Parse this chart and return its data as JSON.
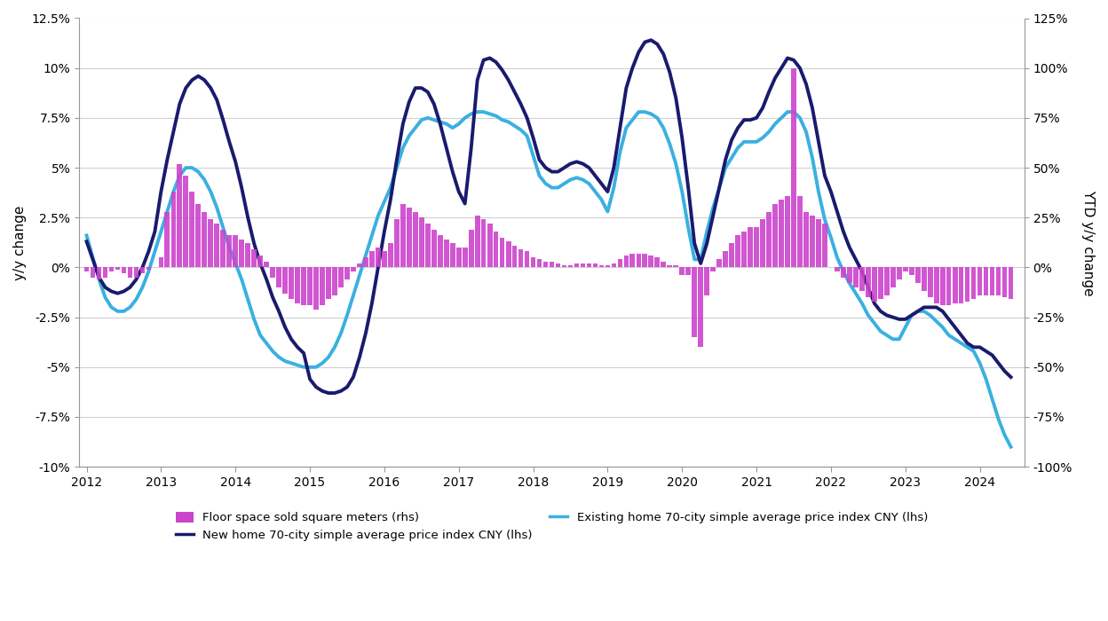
{
  "ylabel_left": "y/y change",
  "ylabel_right": "YTD y/y change",
  "new_home_color": "#1a1a6e",
  "existing_home_color": "#3ab0e0",
  "bar_color": "#cc44cc",
  "background_color": "#ffffff",
  "ylim_left": [
    -0.1,
    0.125
  ],
  "ylim_right": [
    -1.0,
    1.25
  ],
  "yticks_left": [
    -0.1,
    -0.075,
    -0.05,
    -0.025,
    0.0,
    0.025,
    0.05,
    0.075,
    0.1,
    0.125
  ],
  "yticks_right": [
    -1.0,
    -0.75,
    -0.5,
    -0.25,
    0.0,
    0.25,
    0.5,
    0.75,
    1.0,
    1.25
  ],
  "legend": [
    {
      "label": "Floor space sold square meters (rhs)",
      "color": "#cc44cc",
      "type": "bar"
    },
    {
      "label": "New home 70-city simple average price index CNY (lhs)",
      "color": "#1a1a6e",
      "type": "line"
    },
    {
      "label": "Existing home 70-city simple average price index CNY (lhs)",
      "color": "#3ab0e0",
      "type": "line"
    }
  ],
  "dates_new_home": [
    2012.0,
    2012.083,
    2012.167,
    2012.25,
    2012.333,
    2012.417,
    2012.5,
    2012.583,
    2012.667,
    2012.75,
    2012.833,
    2012.917,
    2013.0,
    2013.083,
    2013.167,
    2013.25,
    2013.333,
    2013.417,
    2013.5,
    2013.583,
    2013.667,
    2013.75,
    2013.833,
    2013.917,
    2014.0,
    2014.083,
    2014.167,
    2014.25,
    2014.333,
    2014.417,
    2014.5,
    2014.583,
    2014.667,
    2014.75,
    2014.833,
    2014.917,
    2015.0,
    2015.083,
    2015.167,
    2015.25,
    2015.333,
    2015.417,
    2015.5,
    2015.583,
    2015.667,
    2015.75,
    2015.833,
    2015.917,
    2016.0,
    2016.083,
    2016.167,
    2016.25,
    2016.333,
    2016.417,
    2016.5,
    2016.583,
    2016.667,
    2016.75,
    2016.833,
    2016.917,
    2017.0,
    2017.083,
    2017.167,
    2017.25,
    2017.333,
    2017.417,
    2017.5,
    2017.583,
    2017.667,
    2017.75,
    2017.833,
    2017.917,
    2018.0,
    2018.083,
    2018.167,
    2018.25,
    2018.333,
    2018.417,
    2018.5,
    2018.583,
    2018.667,
    2018.75,
    2018.833,
    2018.917,
    2019.0,
    2019.083,
    2019.167,
    2019.25,
    2019.333,
    2019.417,
    2019.5,
    2019.583,
    2019.667,
    2019.75,
    2019.833,
    2019.917,
    2020.0,
    2020.083,
    2020.167,
    2020.25,
    2020.333,
    2020.417,
    2020.5,
    2020.583,
    2020.667,
    2020.75,
    2020.833,
    2020.917,
    2021.0,
    2021.083,
    2021.167,
    2021.25,
    2021.333,
    2021.417,
    2021.5,
    2021.583,
    2021.667,
    2021.75,
    2021.833,
    2021.917,
    2022.0,
    2022.083,
    2022.167,
    2022.25,
    2022.333,
    2022.417,
    2022.5,
    2022.583,
    2022.667,
    2022.75,
    2022.833,
    2022.917,
    2023.0,
    2023.083,
    2023.167,
    2023.25,
    2023.333,
    2023.417,
    2023.5,
    2023.583,
    2023.667,
    2023.75,
    2023.833,
    2023.917,
    2024.0,
    2024.083,
    2024.167,
    2024.25,
    2024.333,
    2024.417
  ],
  "values_new_home": [
    0.013,
    0.004,
    -0.005,
    -0.01,
    -0.012,
    -0.013,
    -0.012,
    -0.01,
    -0.006,
    0.0,
    0.008,
    0.018,
    0.038,
    0.054,
    0.068,
    0.082,
    0.09,
    0.094,
    0.096,
    0.094,
    0.09,
    0.084,
    0.074,
    0.063,
    0.053,
    0.04,
    0.025,
    0.012,
    0.002,
    -0.006,
    -0.015,
    -0.022,
    -0.03,
    -0.036,
    -0.04,
    -0.043,
    -0.056,
    -0.06,
    -0.062,
    -0.063,
    -0.063,
    -0.062,
    -0.06,
    -0.055,
    -0.045,
    -0.033,
    -0.018,
    0.0,
    0.018,
    0.034,
    0.054,
    0.072,
    0.083,
    0.09,
    0.09,
    0.088,
    0.082,
    0.072,
    0.06,
    0.048,
    0.038,
    0.032,
    0.06,
    0.094,
    0.104,
    0.105,
    0.103,
    0.099,
    0.094,
    0.088,
    0.082,
    0.075,
    0.065,
    0.054,
    0.05,
    0.048,
    0.048,
    0.05,
    0.052,
    0.053,
    0.052,
    0.05,
    0.046,
    0.042,
    0.038,
    0.05,
    0.07,
    0.09,
    0.1,
    0.108,
    0.113,
    0.114,
    0.112,
    0.107,
    0.098,
    0.085,
    0.065,
    0.04,
    0.012,
    0.002,
    0.012,
    0.026,
    0.04,
    0.054,
    0.064,
    0.07,
    0.074,
    0.074,
    0.075,
    0.08,
    0.088,
    0.095,
    0.1,
    0.105,
    0.104,
    0.1,
    0.092,
    0.08,
    0.063,
    0.046,
    0.038,
    0.028,
    0.018,
    0.01,
    0.004,
    -0.002,
    -0.01,
    -0.018,
    -0.022,
    -0.024,
    -0.025,
    -0.026,
    -0.026,
    -0.024,
    -0.022,
    -0.02,
    -0.02,
    -0.02,
    -0.022,
    -0.026,
    -0.03,
    -0.034,
    -0.038,
    -0.04,
    -0.04,
    -0.042,
    -0.044,
    -0.048,
    -0.052,
    -0.055
  ],
  "dates_existing_home": [
    2012.0,
    2012.083,
    2012.167,
    2012.25,
    2012.333,
    2012.417,
    2012.5,
    2012.583,
    2012.667,
    2012.75,
    2012.833,
    2012.917,
    2013.0,
    2013.083,
    2013.167,
    2013.25,
    2013.333,
    2013.417,
    2013.5,
    2013.583,
    2013.667,
    2013.75,
    2013.833,
    2013.917,
    2014.0,
    2014.083,
    2014.167,
    2014.25,
    2014.333,
    2014.417,
    2014.5,
    2014.583,
    2014.667,
    2014.75,
    2014.833,
    2014.917,
    2015.0,
    2015.083,
    2015.167,
    2015.25,
    2015.333,
    2015.417,
    2015.5,
    2015.583,
    2015.667,
    2015.75,
    2015.833,
    2015.917,
    2016.0,
    2016.083,
    2016.167,
    2016.25,
    2016.333,
    2016.417,
    2016.5,
    2016.583,
    2016.667,
    2016.75,
    2016.833,
    2016.917,
    2017.0,
    2017.083,
    2017.167,
    2017.25,
    2017.333,
    2017.417,
    2017.5,
    2017.583,
    2017.667,
    2017.75,
    2017.833,
    2017.917,
    2018.0,
    2018.083,
    2018.167,
    2018.25,
    2018.333,
    2018.417,
    2018.5,
    2018.583,
    2018.667,
    2018.75,
    2018.833,
    2018.917,
    2019.0,
    2019.083,
    2019.167,
    2019.25,
    2019.333,
    2019.417,
    2019.5,
    2019.583,
    2019.667,
    2019.75,
    2019.833,
    2019.917,
    2020.0,
    2020.083,
    2020.167,
    2020.25,
    2020.333,
    2020.417,
    2020.5,
    2020.583,
    2020.667,
    2020.75,
    2020.833,
    2020.917,
    2021.0,
    2021.083,
    2021.167,
    2021.25,
    2021.333,
    2021.417,
    2021.5,
    2021.583,
    2021.667,
    2021.75,
    2021.833,
    2021.917,
    2022.0,
    2022.083,
    2022.167,
    2022.25,
    2022.333,
    2022.417,
    2022.5,
    2022.583,
    2022.667,
    2022.75,
    2022.833,
    2022.917,
    2023.0,
    2023.083,
    2023.167,
    2023.25,
    2023.333,
    2023.417,
    2023.5,
    2023.583,
    2023.667,
    2023.75,
    2023.833,
    2023.917,
    2024.0,
    2024.083,
    2024.167,
    2024.25,
    2024.333,
    2024.417
  ],
  "values_existing_home": [
    0.016,
    0.005,
    -0.006,
    -0.015,
    -0.02,
    -0.022,
    -0.022,
    -0.02,
    -0.016,
    -0.01,
    -0.002,
    0.008,
    0.018,
    0.028,
    0.038,
    0.046,
    0.05,
    0.05,
    0.048,
    0.044,
    0.038,
    0.03,
    0.02,
    0.01,
    0.002,
    -0.006,
    -0.016,
    -0.026,
    -0.034,
    -0.038,
    -0.042,
    -0.045,
    -0.047,
    -0.048,
    -0.049,
    -0.05,
    -0.05,
    -0.05,
    -0.048,
    -0.045,
    -0.04,
    -0.033,
    -0.024,
    -0.014,
    -0.004,
    0.006,
    0.016,
    0.026,
    0.033,
    0.04,
    0.05,
    0.06,
    0.066,
    0.07,
    0.074,
    0.075,
    0.074,
    0.073,
    0.072,
    0.07,
    0.072,
    0.075,
    0.077,
    0.078,
    0.078,
    0.077,
    0.076,
    0.074,
    0.073,
    0.071,
    0.069,
    0.066,
    0.056,
    0.046,
    0.042,
    0.04,
    0.04,
    0.042,
    0.044,
    0.045,
    0.044,
    0.042,
    0.038,
    0.034,
    0.028,
    0.04,
    0.058,
    0.07,
    0.074,
    0.078,
    0.078,
    0.077,
    0.075,
    0.07,
    0.062,
    0.052,
    0.038,
    0.02,
    0.004,
    0.004,
    0.018,
    0.03,
    0.04,
    0.05,
    0.055,
    0.06,
    0.063,
    0.063,
    0.063,
    0.065,
    0.068,
    0.072,
    0.075,
    0.078,
    0.078,
    0.075,
    0.068,
    0.055,
    0.038,
    0.024,
    0.015,
    0.005,
    -0.002,
    -0.008,
    -0.013,
    -0.018,
    -0.024,
    -0.028,
    -0.032,
    -0.034,
    -0.036,
    -0.036,
    -0.03,
    -0.024,
    -0.022,
    -0.022,
    -0.024,
    -0.027,
    -0.03,
    -0.034,
    -0.036,
    -0.038,
    -0.04,
    -0.042,
    -0.048,
    -0.056,
    -0.066,
    -0.076,
    -0.084,
    -0.09
  ],
  "bar_dates": [
    2012.0,
    2012.083,
    2012.167,
    2012.25,
    2012.333,
    2012.417,
    2012.5,
    2012.583,
    2012.667,
    2012.75,
    2012.833,
    2012.917,
    2013.0,
    2013.083,
    2013.167,
    2013.25,
    2013.333,
    2013.417,
    2013.5,
    2013.583,
    2013.667,
    2013.75,
    2013.833,
    2013.917,
    2014.0,
    2014.083,
    2014.167,
    2014.25,
    2014.333,
    2014.417,
    2014.5,
    2014.583,
    2014.667,
    2014.75,
    2014.833,
    2014.917,
    2015.0,
    2015.083,
    2015.167,
    2015.25,
    2015.333,
    2015.417,
    2015.5,
    2015.583,
    2015.667,
    2015.75,
    2015.833,
    2015.917,
    2016.0,
    2016.083,
    2016.167,
    2016.25,
    2016.333,
    2016.417,
    2016.5,
    2016.583,
    2016.667,
    2016.75,
    2016.833,
    2016.917,
    2017.0,
    2017.083,
    2017.167,
    2017.25,
    2017.333,
    2017.417,
    2017.5,
    2017.583,
    2017.667,
    2017.75,
    2017.833,
    2017.917,
    2018.0,
    2018.083,
    2018.167,
    2018.25,
    2018.333,
    2018.417,
    2018.5,
    2018.583,
    2018.667,
    2018.75,
    2018.833,
    2018.917,
    2019.0,
    2019.083,
    2019.167,
    2019.25,
    2019.333,
    2019.417,
    2019.5,
    2019.583,
    2019.667,
    2019.75,
    2019.833,
    2019.917,
    2020.0,
    2020.083,
    2020.167,
    2020.25,
    2020.333,
    2020.417,
    2020.5,
    2020.583,
    2020.667,
    2020.75,
    2020.833,
    2020.917,
    2021.0,
    2021.083,
    2021.167,
    2021.25,
    2021.333,
    2021.417,
    2021.5,
    2021.583,
    2021.667,
    2021.75,
    2021.833,
    2021.917,
    2022.0,
    2022.083,
    2022.167,
    2022.25,
    2022.333,
    2022.417,
    2022.5,
    2022.583,
    2022.667,
    2022.75,
    2022.833,
    2022.917,
    2023.0,
    2023.083,
    2023.167,
    2023.25,
    2023.333,
    2023.417,
    2023.5,
    2023.583,
    2023.667,
    2023.75,
    2023.833,
    2023.917,
    2024.0,
    2024.083,
    2024.167,
    2024.25,
    2024.333,
    2024.417
  ],
  "bar_values": [
    -0.02,
    -0.05,
    -0.06,
    -0.05,
    -0.02,
    -0.01,
    -0.03,
    -0.05,
    -0.05,
    -0.03,
    -0.01,
    0.0,
    0.05,
    0.28,
    0.38,
    0.52,
    0.46,
    0.38,
    0.32,
    0.28,
    0.24,
    0.22,
    0.19,
    0.16,
    0.16,
    0.14,
    0.12,
    0.09,
    0.06,
    0.03,
    -0.05,
    -0.1,
    -0.13,
    -0.16,
    -0.18,
    -0.19,
    -0.19,
    -0.21,
    -0.19,
    -0.16,
    -0.14,
    -0.1,
    -0.06,
    -0.02,
    0.02,
    0.05,
    0.08,
    0.1,
    0.08,
    0.12,
    0.24,
    0.32,
    0.3,
    0.28,
    0.25,
    0.22,
    0.19,
    0.16,
    0.14,
    0.12,
    0.1,
    0.1,
    0.19,
    0.26,
    0.24,
    0.22,
    0.18,
    0.15,
    0.13,
    0.11,
    0.09,
    0.08,
    0.05,
    0.04,
    0.03,
    0.03,
    0.02,
    0.01,
    0.01,
    0.02,
    0.02,
    0.02,
    0.02,
    0.01,
    0.01,
    0.02,
    0.04,
    0.06,
    0.07,
    0.07,
    0.07,
    0.06,
    0.05,
    0.03,
    0.01,
    0.01,
    -0.04,
    -0.04,
    -0.35,
    -0.4,
    -0.14,
    -0.02,
    0.04,
    0.08,
    0.12,
    0.16,
    0.18,
    0.2,
    0.2,
    0.24,
    0.28,
    0.32,
    0.34,
    0.36,
    1.0,
    0.36,
    0.28,
    0.26,
    0.24,
    0.22,
    0.0,
    -0.02,
    -0.05,
    -0.08,
    -0.1,
    -0.12,
    -0.15,
    -0.17,
    -0.16,
    -0.14,
    -0.1,
    -0.06,
    -0.02,
    -0.04,
    -0.08,
    -0.12,
    -0.15,
    -0.18,
    -0.19,
    -0.19,
    -0.18,
    -0.18,
    -0.17,
    -0.16,
    -0.14,
    -0.14,
    -0.14,
    -0.14,
    -0.15,
    -0.16
  ],
  "xlim": [
    2011.9,
    2024.6
  ],
  "xticks": [
    2012,
    2013,
    2014,
    2015,
    2016,
    2017,
    2018,
    2019,
    2020,
    2021,
    2022,
    2023,
    2024
  ]
}
